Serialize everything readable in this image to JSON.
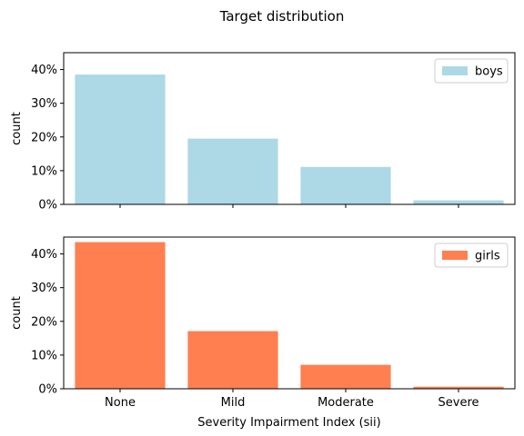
{
  "figure": {
    "title": "Target distribution",
    "xlabel": "Severity Impairment Index (sii)"
  },
  "chart_data": [
    {
      "type": "bar",
      "categories": [
        "None",
        "Mild",
        "Moderate",
        "Severe"
      ],
      "series": [
        {
          "name": "boys",
          "values": [
            38.5,
            19.5,
            11.1,
            1.2
          ]
        }
      ],
      "ylabel": "count",
      "ylim": [
        0,
        45
      ],
      "yticks": [
        0,
        10,
        20,
        30,
        40
      ],
      "ytick_labels": [
        "0%",
        "10%",
        "20%",
        "30%",
        "40%"
      ],
      "show_xtick_labels": false,
      "grid": false,
      "legend": "top-right",
      "color": "#add8e6"
    },
    {
      "type": "bar",
      "categories": [
        "None",
        "Mild",
        "Moderate",
        "Severe"
      ],
      "series": [
        {
          "name": "girls",
          "values": [
            43.5,
            17.1,
            7.1,
            0.6
          ]
        }
      ],
      "xlabel": "Severity Impairment Index (sii)",
      "ylabel": "count",
      "ylim": [
        0,
        45
      ],
      "yticks": [
        0,
        10,
        20,
        30,
        40
      ],
      "ytick_labels": [
        "0%",
        "10%",
        "20%",
        "30%",
        "40%"
      ],
      "show_xtick_labels": true,
      "grid": false,
      "legend": "top-right",
      "color": "#ff7f50"
    }
  ]
}
